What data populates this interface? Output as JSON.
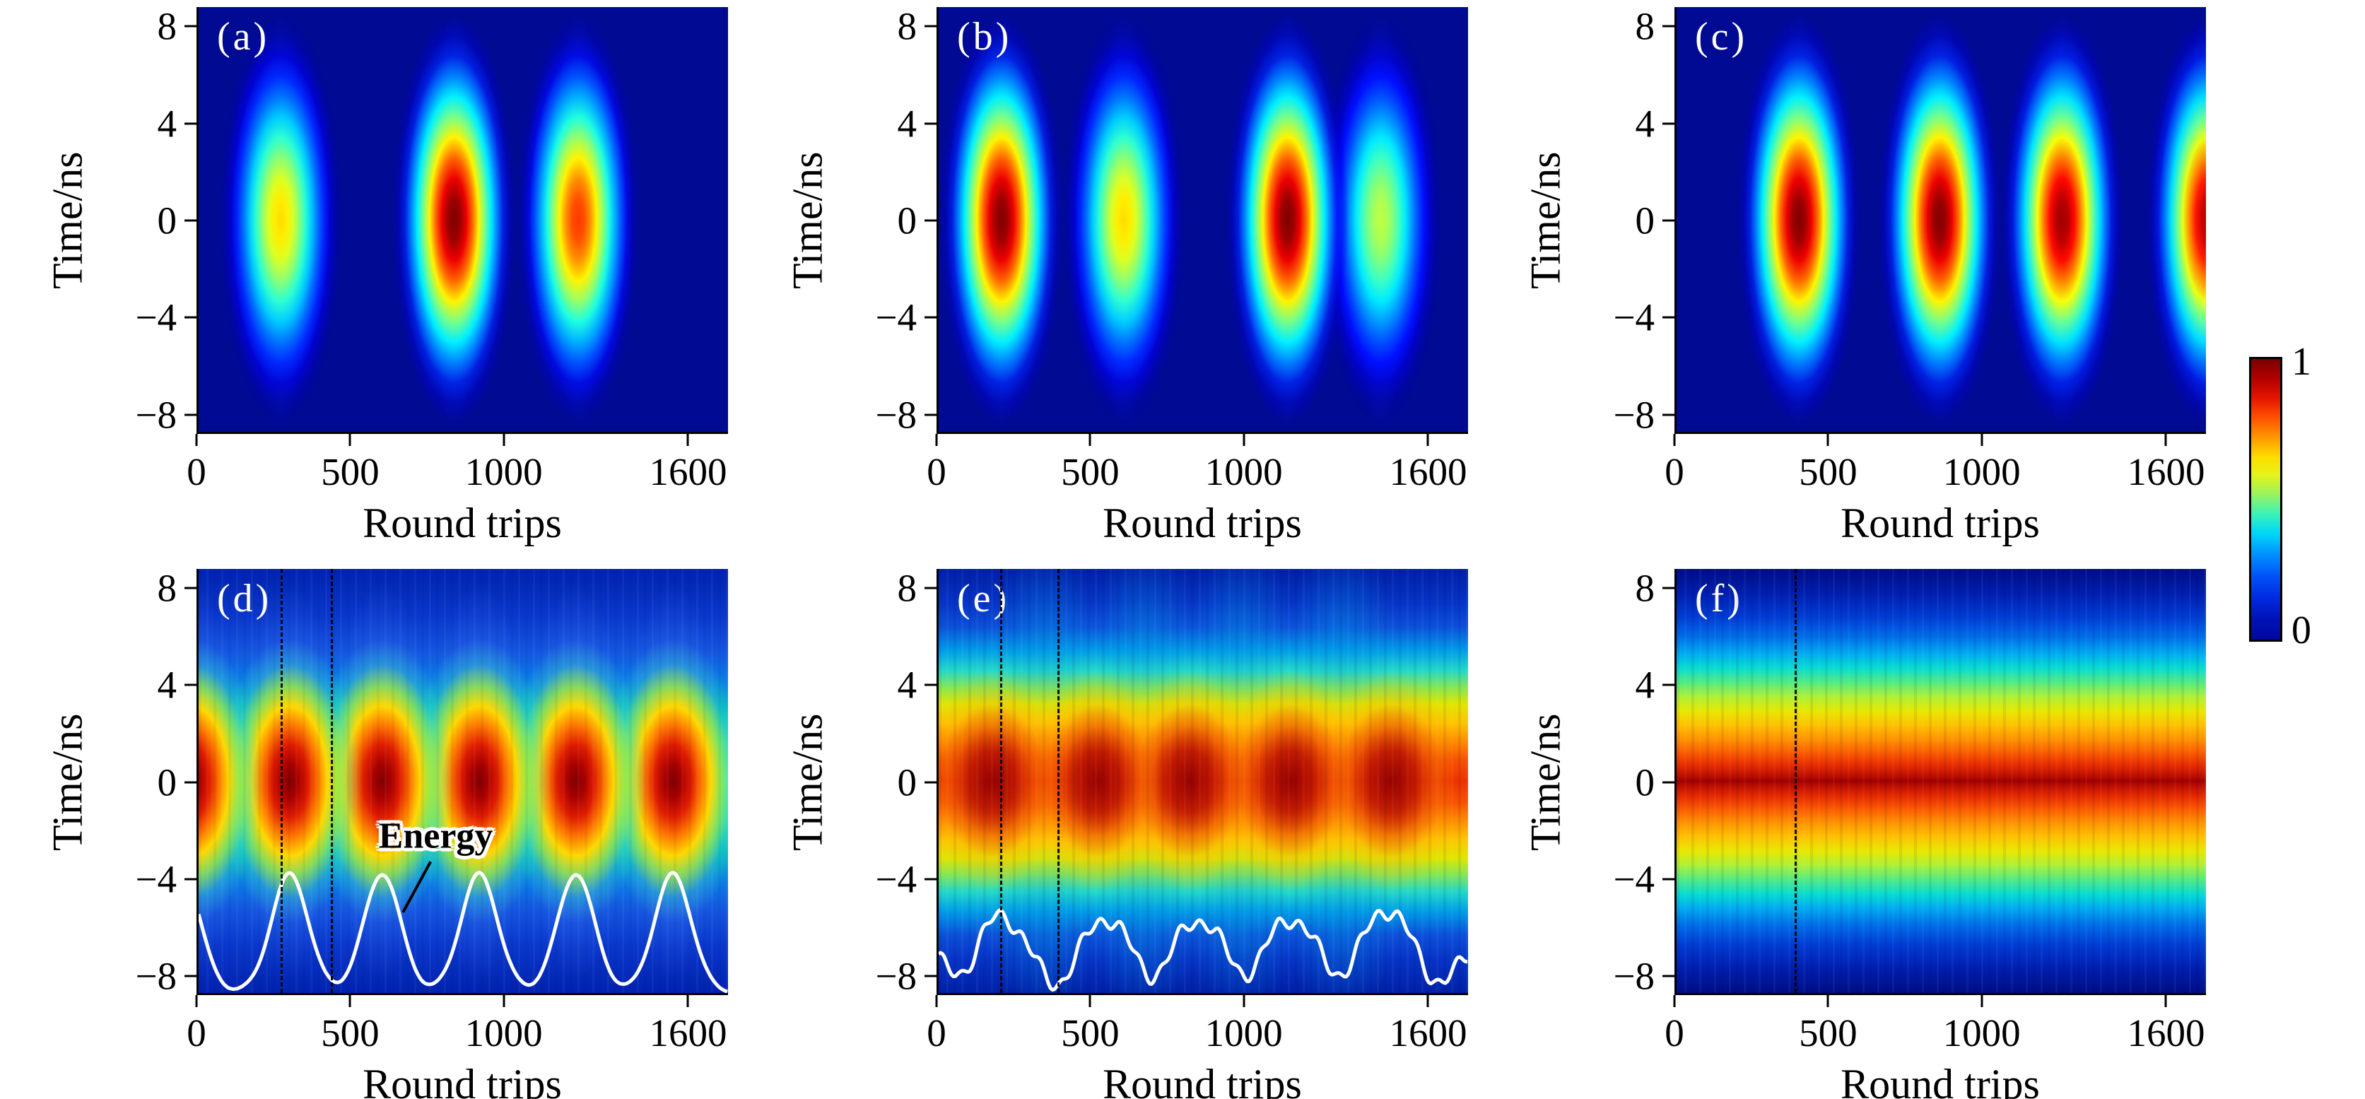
{
  "chart_data": {
    "type": "heatmap",
    "layout": "2x3 grid of evolution heatmaps with shared colorbar",
    "colormap": "jet",
    "xlabel": "Round trips",
    "ylabel": "Time/ns",
    "xlim": [
      0,
      1730
    ],
    "ylim": [
      -8.8,
      8.8
    ],
    "xtick_values": [
      0,
      500,
      1000,
      1600
    ],
    "xtick_labels": [
      "0",
      "500",
      "1000",
      "1600"
    ],
    "ytick_values": [
      8,
      4,
      0,
      -4,
      -8
    ],
    "ytick_labels": [
      "8",
      "4",
      "0",
      "−4",
      "−8"
    ],
    "colorbar": {
      "max": "1",
      "min": "0",
      "gradient": [
        "#7a0000 0%",
        "#b20000 7%",
        "#e51600 14%",
        "#ff5200 21%",
        "#ff9800 28%",
        "#ffdd00 35%",
        "#e7f317 41%",
        "#9cf35c 48%",
        "#3df3b5 55%",
        "#00d8f8 62%",
        "#0096ff 69%",
        "#0055f8 77%",
        "#002ae0 85%",
        "#0012b6 93%",
        "#0008a0 100%"
      ]
    },
    "panels": [
      {
        "id": "a",
        "letter": "(a)",
        "kind": "pulsed",
        "pulses": [
          {
            "x": 268,
            "v": 0.66
          },
          {
            "x": 835,
            "v": 1.0
          },
          {
            "x": 1240,
            "v": 0.82
          }
        ]
      },
      {
        "id": "b",
        "letter": "(b)",
        "kind": "pulsed",
        "pulses": [
          {
            "x": 205,
            "v": 1.0
          },
          {
            "x": 605,
            "v": 0.66
          },
          {
            "x": 1140,
            "v": 1.0
          },
          {
            "x": 1445,
            "v": 0.56
          }
        ]
      },
      {
        "id": "c",
        "letter": "(c)",
        "kind": "pulsed",
        "pulses": [
          {
            "x": 400,
            "v": 1.0
          },
          {
            "x": 860,
            "v": 1.0
          },
          {
            "x": 1260,
            "v": 0.97
          },
          {
            "x": 1735,
            "v": 0.95
          }
        ]
      },
      {
        "id": "d",
        "letter": "(d)",
        "kind": "breathing",
        "pulses": [
          {
            "x": -25,
            "v": 0.95
          },
          {
            "x": 298,
            "v": 1.0
          },
          {
            "x": 600,
            "v": 1.0
          },
          {
            "x": 917,
            "v": 1.0
          },
          {
            "x": 1233,
            "v": 1.0
          },
          {
            "x": 1550,
            "v": 1.0
          }
        ],
        "dashed_lines": [
          268,
          433
        ],
        "energy_curve": {
          "peaks": [
            298,
            600,
            917,
            1233,
            1550
          ],
          "peak_t": -3.85,
          "base_t": -8.75,
          "sigma": 60,
          "edge_peaks": [
            {
              "x": -55,
              "amp": 4.9
            }
          ],
          "noisy": false
        },
        "annotation": {
          "label": "Energy",
          "x": 775,
          "t": -2.3,
          "leader": [
            [
              758,
              -3.35
            ],
            [
              668,
              -5.45
            ]
          ]
        }
      },
      {
        "id": "e",
        "letter": "(e)",
        "kind": "breathing-broad",
        "pulses": [
          {
            "x": 175
          },
          {
            "x": 520
          },
          {
            "x": 820
          },
          {
            "x": 1150
          },
          {
            "x": 1480
          }
        ],
        "dashed_lines": [
          200,
          388
        ],
        "energy_curve": {
          "peaks": [
            205,
            540,
            845,
            1150,
            1465
          ],
          "peak_heights": [
            -5.5,
            -5.6,
            -5.6,
            -5.5,
            -5.1
          ],
          "base_t": -9.0,
          "sigma": 78,
          "edge_peaks": [
            {
              "x": -60,
              "amp": 1.6
            },
            {
              "x": 1800,
              "amp": 2.6
            }
          ],
          "noisy": true
        }
      },
      {
        "id": "f",
        "letter": "(f)",
        "kind": "cw",
        "dashed_lines": [
          385
        ]
      }
    ]
  }
}
